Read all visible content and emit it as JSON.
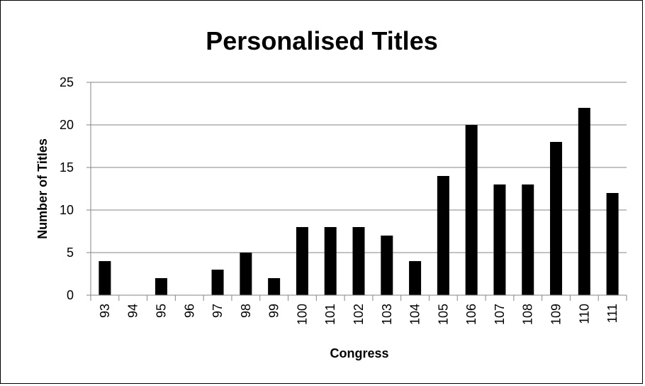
{
  "chart_data": {
    "type": "bar",
    "title": "Personalised Titles",
    "xlabel": "Congress",
    "ylabel": "Number of Titles",
    "categories": [
      "93",
      "94",
      "95",
      "96",
      "97",
      "98",
      "99",
      "100",
      "101",
      "102",
      "103",
      "104",
      "105",
      "106",
      "107",
      "108",
      "109",
      "110",
      "111"
    ],
    "values": [
      4,
      0,
      2,
      0,
      3,
      5,
      2,
      8,
      8,
      8,
      7,
      4,
      14,
      20,
      13,
      13,
      18,
      22,
      12
    ],
    "ylim": [
      0,
      25
    ],
    "yticks": [
      0,
      5,
      10,
      15,
      20,
      25
    ],
    "grid": true,
    "legend": "none",
    "bar_color": "#000000",
    "grid_color": "#868686"
  }
}
